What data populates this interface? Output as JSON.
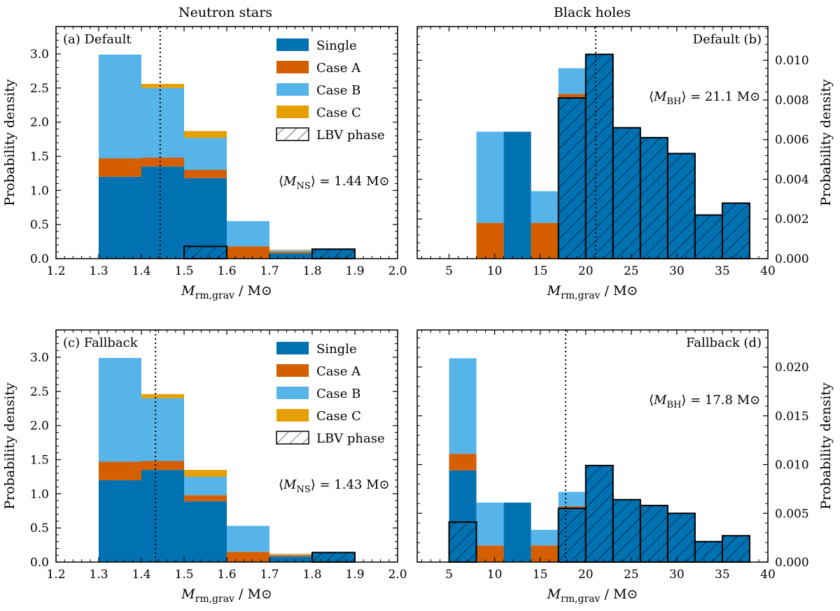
{
  "column_titles": [
    "Neutron stars",
    "Black holes"
  ],
  "legend": [
    {
      "key": "single",
      "label": "Single",
      "color": "#0072B2"
    },
    {
      "key": "caseA",
      "label": "Case A",
      "color": "#D55E00"
    },
    {
      "key": "caseB",
      "label": "Case B",
      "color": "#56B4E9"
    },
    {
      "key": "caseC",
      "label": "Case C",
      "color": "#E69F00"
    },
    {
      "key": "lbv",
      "label": "LBV phase",
      "hatch": true
    }
  ],
  "chart_data": [
    {
      "id": "a",
      "type": "bar",
      "stacked": true,
      "panel_label": "(a) Default",
      "xlabel_main": "M",
      "xlabel_sub": "rm,grav",
      "xlabel_unit": "/ M⊙",
      "ylabel": "Probability density",
      "y_axis_side": "left",
      "xlim": [
        1.2,
        2.0
      ],
      "ylim": [
        0,
        3.4
      ],
      "xticks": [
        "1.2",
        "1.3",
        "1.4",
        "1.5",
        "1.6",
        "1.7",
        "1.8",
        "1.9",
        "2.0"
      ],
      "yticks": [
        "0.0",
        "0.5",
        "1.0",
        "1.5",
        "2.0",
        "2.5",
        "3.0"
      ],
      "bins": [
        [
          1.3,
          1.4
        ],
        [
          1.4,
          1.5
        ],
        [
          1.5,
          1.6
        ],
        [
          1.6,
          1.7
        ],
        [
          1.7,
          1.8
        ],
        [
          1.8,
          1.9
        ]
      ],
      "series": [
        {
          "key": "single",
          "values": [
            1.2,
            1.35,
            1.18,
            0.0,
            0.08,
            0.14
          ]
        },
        {
          "key": "caseA",
          "values": [
            0.27,
            0.13,
            0.12,
            0.18,
            0.02,
            0.0
          ]
        },
        {
          "key": "caseB",
          "values": [
            1.52,
            1.02,
            0.47,
            0.37,
            0.02,
            0.0
          ]
        },
        {
          "key": "caseC",
          "values": [
            0.0,
            0.06,
            0.1,
            0.0,
            0.01,
            0.0
          ]
        }
      ],
      "lbv": [
        0.0,
        0.0,
        0.18,
        0.0,
        0.0,
        0.14
      ],
      "mean_line": 1.444,
      "mean_text": {
        "sym": "M",
        "sub": "NS",
        "value": "= 1.44 M⊙"
      },
      "legend_shown": true
    },
    {
      "id": "b",
      "type": "bar",
      "stacked": true,
      "panel_label": "Default (b)",
      "xlabel_main": "M",
      "xlabel_sub": "rm,grav",
      "xlabel_unit": "/ M⊙",
      "ylabel": "Probability density",
      "y_axis_side": "right",
      "xlim": [
        1.5,
        40
      ],
      "ylim": [
        0,
        0.0117
      ],
      "xticks": [
        "5",
        "10",
        "15",
        "20",
        "25",
        "30",
        "35",
        "40"
      ],
      "yticks": [
        "0.000",
        "0.002",
        "0.004",
        "0.006",
        "0.008",
        "0.010"
      ],
      "bins": [
        [
          8,
          11
        ],
        [
          11,
          14
        ],
        [
          14,
          17
        ],
        [
          17,
          20
        ],
        [
          20,
          23
        ],
        [
          23,
          26
        ],
        [
          26,
          29
        ],
        [
          29,
          32
        ],
        [
          32,
          35
        ],
        [
          35,
          38
        ]
      ],
      "series": [
        {
          "key": "single",
          "values": [
            0.0,
            0.0064,
            0.0,
            0.0081,
            0.0103,
            0.0066,
            0.0061,
            0.0053,
            0.0022,
            0.0028
          ]
        },
        {
          "key": "caseA",
          "values": [
            0.0018,
            0.0,
            0.0018,
            0.0002,
            0.0,
            0.0,
            0.0,
            0.0,
            0.0,
            0.0
          ]
        },
        {
          "key": "caseB",
          "values": [
            0.0046,
            0.0,
            0.0016,
            0.0013,
            0.0,
            0.0,
            0.0,
            0.0,
            0.0,
            0.0
          ]
        },
        {
          "key": "caseC",
          "values": [
            0.0,
            0.0,
            0.0,
            0.0,
            0.0,
            0.0,
            0.0,
            0.0,
            0.0,
            0.0
          ]
        }
      ],
      "lbv": [
        0.0,
        0.0,
        0.0,
        0.0081,
        0.0103,
        0.0066,
        0.0061,
        0.0053,
        0.0022,
        0.0028
      ],
      "mean_line": 21.1,
      "mean_text": {
        "sym": "M",
        "sub": "BH",
        "value": "= 21.1 M⊙"
      },
      "legend_shown": false
    },
    {
      "id": "c",
      "type": "bar",
      "stacked": true,
      "panel_label": "(c) Fallback",
      "xlabel_main": "M",
      "xlabel_sub": "rm,grav",
      "xlabel_unit": "/ M⊙",
      "ylabel": "Probability density",
      "y_axis_side": "left",
      "xlim": [
        1.2,
        2.0
      ],
      "ylim": [
        0,
        3.4
      ],
      "xticks": [
        "1.2",
        "1.3",
        "1.4",
        "1.5",
        "1.6",
        "1.7",
        "1.8",
        "1.9",
        "2.0"
      ],
      "yticks": [
        "0.0",
        "0.5",
        "1.0",
        "1.5",
        "2.0",
        "2.5",
        "3.0"
      ],
      "bins": [
        [
          1.3,
          1.4
        ],
        [
          1.4,
          1.5
        ],
        [
          1.5,
          1.6
        ],
        [
          1.6,
          1.7
        ],
        [
          1.7,
          1.8
        ],
        [
          1.8,
          1.9
        ]
      ],
      "series": [
        {
          "key": "single",
          "values": [
            1.2,
            1.35,
            0.89,
            0.0,
            0.08,
            0.14
          ]
        },
        {
          "key": "caseA",
          "values": [
            0.27,
            0.13,
            0.09,
            0.15,
            0.02,
            0.0
          ]
        },
        {
          "key": "caseB",
          "values": [
            1.52,
            0.92,
            0.27,
            0.38,
            0.01,
            0.0
          ]
        },
        {
          "key": "caseC",
          "values": [
            0.0,
            0.06,
            0.1,
            0.0,
            0.01,
            0.0
          ]
        }
      ],
      "lbv": [
        0.0,
        0.0,
        0.0,
        0.0,
        0.0,
        0.14
      ],
      "mean_line": 1.433,
      "mean_text": {
        "sym": "M",
        "sub": "NS",
        "value": "= 1.43 M⊙"
      },
      "legend_shown": true
    },
    {
      "id": "d",
      "type": "bar",
      "stacked": true,
      "panel_label": "Fallback (d)",
      "xlabel_main": "M",
      "xlabel_sub": "rm,grav",
      "xlabel_unit": "/ M⊙",
      "ylabel": "Probability density",
      "y_axis_side": "right",
      "xlim": [
        1.5,
        40
      ],
      "ylim": [
        0,
        0.0238
      ],
      "xticks": [
        "5",
        "10",
        "15",
        "20",
        "25",
        "30",
        "35",
        "40"
      ],
      "yticks": [
        "0.000",
        "0.005",
        "0.010",
        "0.015",
        "0.020"
      ],
      "bins": [
        [
          5,
          8
        ],
        [
          8,
          11
        ],
        [
          11,
          14
        ],
        [
          14,
          17
        ],
        [
          17,
          20
        ],
        [
          20,
          23
        ],
        [
          23,
          26
        ],
        [
          26,
          29
        ],
        [
          29,
          32
        ],
        [
          32,
          35
        ],
        [
          35,
          38
        ]
      ],
      "series": [
        {
          "key": "single",
          "values": [
            0.0094,
            0.0,
            0.0061,
            0.0,
            0.0055,
            0.0099,
            0.0064,
            0.0058,
            0.005,
            0.0021,
            0.0027
          ]
        },
        {
          "key": "caseA",
          "values": [
            0.0017,
            0.0017,
            0.0,
            0.0017,
            0.0002,
            0.0,
            0.0,
            0.0,
            0.0,
            0.0,
            0.0
          ]
        },
        {
          "key": "caseB",
          "values": [
            0.0098,
            0.0044,
            0.0,
            0.0016,
            0.0015,
            0.0,
            0.0,
            0.0,
            0.0,
            0.0,
            0.0
          ]
        },
        {
          "key": "caseC",
          "values": [
            0.0,
            0.0,
            0.0,
            0.0,
            0.0,
            0.0,
            0.0,
            0.0,
            0.0,
            0.0,
            0.0
          ]
        }
      ],
      "lbv": [
        0.0041,
        0.0,
        0.0,
        0.0,
        0.0055,
        0.0099,
        0.0064,
        0.0058,
        0.005,
        0.0021,
        0.0027
      ],
      "mean_line": 17.8,
      "mean_text": {
        "sym": "M",
        "sub": "BH",
        "value": "= 17.8 M⊙"
      },
      "legend_shown": false
    }
  ]
}
